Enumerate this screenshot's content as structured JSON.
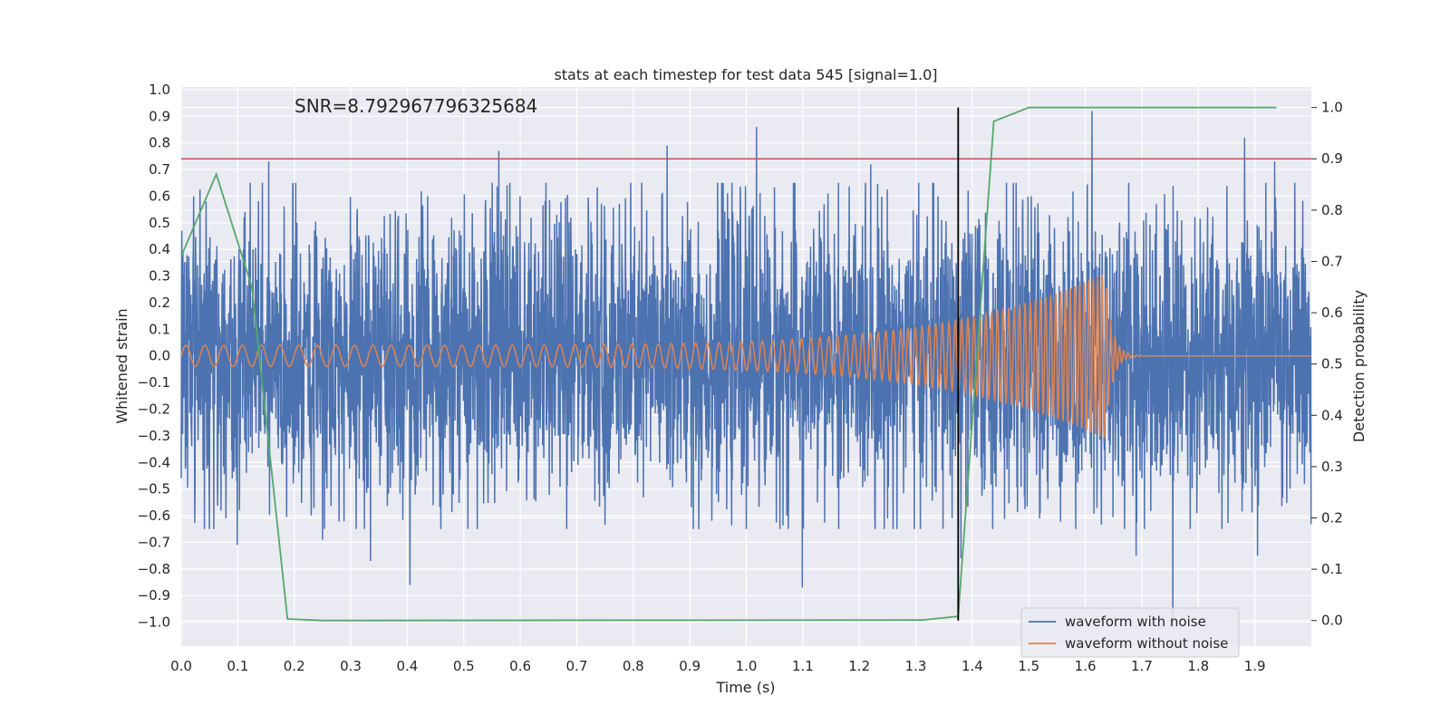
{
  "chart_data": {
    "type": "line",
    "title": "stats at each timestep for test data 545 [signal=1.0]",
    "annotation": "SNR=8.792967796325684",
    "xlabel": "Time (s)",
    "ylabel_left": "Whitened strain",
    "ylabel_right": "Detection probability",
    "xlim": [
      0.0,
      2.0
    ],
    "ylim_left": [
      -1.09,
      1.01
    ],
    "ylim_right": [
      -0.05,
      1.04
    ],
    "grid": true,
    "legend_position": "lower-right",
    "x_ticks": [
      "0.0",
      "0.1",
      "0.2",
      "0.3",
      "0.4",
      "0.5",
      "0.6",
      "0.7",
      "0.8",
      "0.9",
      "1.0",
      "1.1",
      "1.2",
      "1.3",
      "1.4",
      "1.5",
      "1.6",
      "1.7",
      "1.8",
      "1.9"
    ],
    "y_left_ticks": [
      "1.0",
      "0.9",
      "0.8",
      "0.7",
      "0.6",
      "0.5",
      "0.4",
      "0.3",
      "0.2",
      "0.1",
      "0.0",
      "−0.1",
      "−0.2",
      "−0.3",
      "−0.4",
      "−0.5",
      "−0.6",
      "−0.7",
      "−0.8",
      "−0.9",
      "−1.0"
    ],
    "y_right_ticks": [
      "1.0",
      "0.9",
      "0.8",
      "0.7",
      "0.6",
      "0.5",
      "0.4",
      "0.3",
      "0.2",
      "0.1",
      "0.0"
    ],
    "threshold": {
      "axis": "right",
      "y": 0.9,
      "color": "#c44e52"
    },
    "detection_marker": {
      "x": 1.375,
      "y_from": 0.0,
      "y_to": 1.0,
      "color": "#000000"
    },
    "series": [
      {
        "name": "waveform with noise",
        "axis": "left",
        "color": "#4c72b0",
        "sample_rate": 2048,
        "noise_std": 0.27,
        "spikes": [
          [
            0.155,
            0.73
          ],
          [
            0.562,
            0.77
          ],
          [
            1.018,
            0.86
          ],
          [
            1.612,
            0.92
          ],
          [
            1.882,
            0.82
          ],
          [
            1.935,
            0.73
          ],
          [
            1.755,
            -1.02
          ],
          [
            1.099,
            -0.87
          ],
          [
            0.405,
            -0.86
          ],
          [
            0.335,
            -0.77
          ],
          [
            0.099,
            -0.71
          ],
          [
            0.25,
            -0.69
          ],
          [
            1.38,
            -0.76
          ],
          [
            1.69,
            -0.75
          ],
          [
            1.905,
            -0.75
          ],
          [
            0.022,
            0.6
          ],
          [
            0.86,
            0.79
          ],
          [
            1.22,
            0.72
          ]
        ]
      },
      {
        "name": "waveform without noise",
        "axis": "left",
        "color": "#dd8452",
        "chirp": {
          "t_start": 0.0,
          "t_merge": 1.635,
          "f_start": 30,
          "f_merge": 130,
          "amp_start": 0.04,
          "amp_merge": 0.31,
          "ringdown_s": 0.012
        }
      },
      {
        "name": "detection probability",
        "axis": "right",
        "color": "#55a868",
        "x": [
          0.0,
          0.062,
          0.125,
          0.188,
          0.25,
          1.312,
          1.375,
          1.438,
          1.5,
          1.562,
          1.625,
          1.688,
          1.75,
          1.812,
          1.875,
          1.938
        ],
        "y": [
          0.71,
          0.87,
          0.65,
          0.003,
          0.0,
          0.001,
          0.008,
          0.973,
          1.0,
          1.0,
          1.0,
          1.0,
          1.0,
          1.0,
          1.0,
          1.0
        ]
      }
    ]
  }
}
